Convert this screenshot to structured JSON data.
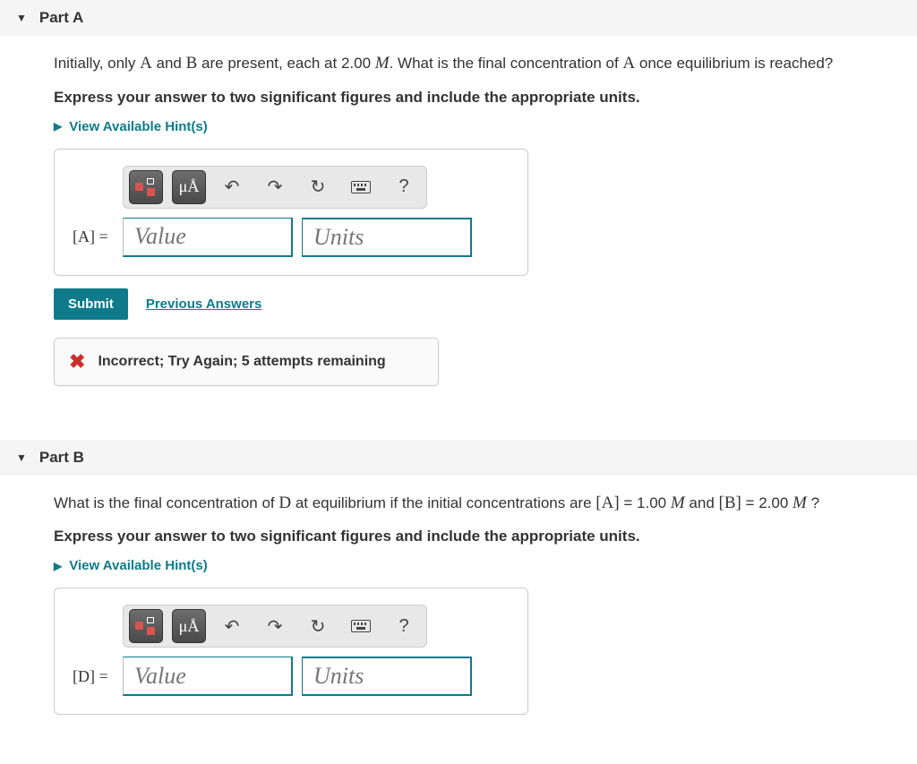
{
  "colors": {
    "accent": "#0f7b8a",
    "header_bg": "#f5f5f5",
    "error": "#c9302c",
    "text": "#333333",
    "placeholder": "#999999",
    "card_border": "#cccccc",
    "toolbar_bg": "#e8e8e8",
    "toolbar_dark_top": "#6e6e6e",
    "toolbar_dark_bottom": "#4a4a4a"
  },
  "partA": {
    "title": "Part A",
    "question_pre": "Initially, only ",
    "varA": "A",
    "q_mid1": " and ",
    "varB": "B",
    "q_mid2": " are present, each at 2.00 ",
    "varM": "M",
    "q_mid3": ". What is the final concentration of ",
    "varA2": "A",
    "q_end": " once equilibrium is reached?",
    "instruction": "Express your answer to two significant figures and include the appropriate units.",
    "hints_label": "View Available Hint(s)",
    "variable_label": "[A] =",
    "value_placeholder": "Value",
    "units_placeholder": "Units",
    "submit_label": "Submit",
    "prev_answers_label": "Previous Answers",
    "feedback_text": "Incorrect; Try Again; 5 attempts remaining",
    "toolbar": {
      "template": "template-icon",
      "units_symbol": "μÅ",
      "undo": "↶",
      "redo": "↷",
      "reset": "↻",
      "keyboard": "keyboard-icon",
      "help": "?"
    }
  },
  "partB": {
    "title": "Part B",
    "q_pre": "What is the final concentration of ",
    "varD": "D",
    "q_mid1": " at equilibrium if the initial concentrations are ",
    "brA": "[A]",
    "eq1": " = 1.00 ",
    "varM1": "M",
    "and": " and ",
    "brB": "[B]",
    "eq2": " = 2.00 ",
    "varM2": "M",
    "q_end": " ?",
    "instruction": "Express your answer to two significant figures and include the appropriate units.",
    "hints_label": "View Available Hint(s)",
    "variable_label": "[D] =",
    "value_placeholder": "Value",
    "units_placeholder": "Units",
    "toolbar": {
      "template": "template-icon",
      "units_symbol": "μÅ",
      "undo": "↶",
      "redo": "↷",
      "reset": "↻",
      "keyboard": "keyboard-icon",
      "help": "?"
    }
  }
}
